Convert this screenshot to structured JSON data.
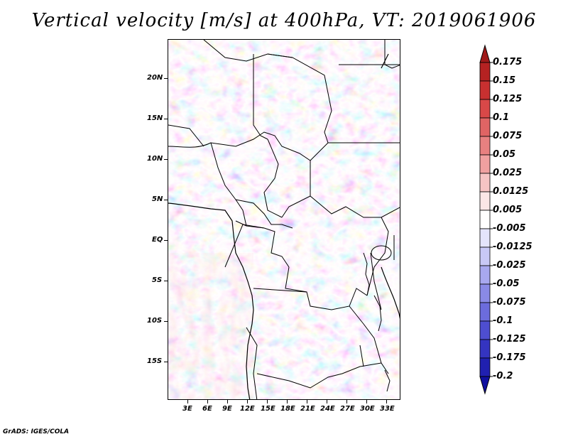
{
  "title": "Vertical velocity [m/s] at 400hPa, VT: 2019061906",
  "credit": "GrADS: IGES/COLA",
  "lat_labels": [
    "20N",
    "15N",
    "10N",
    "5N",
    "EQ",
    "5S",
    "10S",
    "15S"
  ],
  "lon_labels": [
    "3E",
    "6E",
    "9E",
    "12E",
    "15E",
    "18E",
    "21E",
    "24E",
    "27E",
    "30E",
    "33E"
  ],
  "colorbar": {
    "labels": [
      "0.175",
      "0.15",
      "0.125",
      "0.1",
      "0.075",
      "0.05",
      "0.025",
      "0.0125",
      "0.005",
      "-0.005",
      "-0.0125",
      "-0.025",
      "-0.05",
      "-0.075",
      "-0.1",
      "-0.125",
      "-0.175",
      "-0.2"
    ],
    "colors": [
      "#a01a1a",
      "#b52222",
      "#c83030",
      "#d84848",
      "#e06464",
      "#e88080",
      "#f0a0a0",
      "#f6c4c4",
      "#fbe6e6",
      "#ffffff",
      "#e4e4fb",
      "#c8c8f6",
      "#a8a8ef",
      "#8a8ae6",
      "#6c6cdc",
      "#4e4ed0",
      "#3434c0",
      "#2020b0",
      "#1010a0"
    ]
  }
}
